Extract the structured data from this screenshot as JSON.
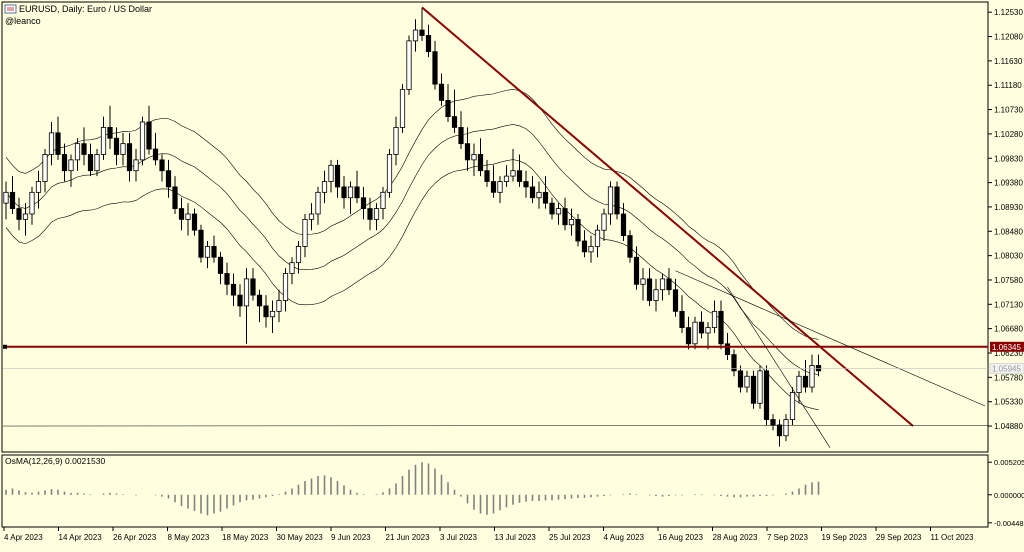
{
  "header": {
    "title": "EURUSD, Daily:  Euro / US Dollar",
    "watermark": "@leanco"
  },
  "colors": {
    "background": "#FFFFE0",
    "grid": "#000000",
    "bull_fill": "#FFFFFF",
    "bear_fill": "#000000",
    "trendline": "#8B0000",
    "hline": "#8B0000",
    "price_label_bg": "#8B0000",
    "bid_label_bg": "#F2F2F2",
    "envelope": "#000000"
  },
  "chart_data": [
    {
      "type": "candlestick",
      "symbol": "EURUSD",
      "timeframe": "Daily",
      "title": "EURUSD, Daily:  Euro / US Dollar",
      "ylim": [
        1.044,
        1.127
      ],
      "y_ticks": [
        "1.12530",
        "1.12080",
        "1.11630",
        "1.11180",
        "1.10730",
        "1.10280",
        "1.09830",
        "1.09380",
        "1.08930",
        "1.08480",
        "1.08030",
        "1.07580",
        "1.07130",
        "1.06680",
        "1.06230",
        "1.05780",
        "1.05330",
        "1.04880"
      ],
      "x_ticks": [
        "4 Apr 2023",
        "14 Apr 2023",
        "26 Apr 2023",
        "8 May 2023",
        "18 May 2023",
        "30 May 2023",
        "9 Jun 2023",
        "21 Jun 2023",
        "3 Jul 2023",
        "13 Jul 2023",
        "25 Jul 2023",
        "4 Aug 2023",
        "16 Aug 2023",
        "28 Aug 2023",
        "7 Sep 2023",
        "19 Sep 2023",
        "29 Sep 2023",
        "11 Oct 2023"
      ],
      "ohlc": [
        [
          1.09,
          1.094,
          1.087,
          1.092
        ],
        [
          1.092,
          1.095,
          1.088,
          1.089
        ],
        [
          1.089,
          1.091,
          1.085,
          1.087
        ],
        [
          1.087,
          1.09,
          1.084,
          1.088
        ],
        [
          1.088,
          1.093,
          1.086,
          1.092
        ],
        [
          1.092,
          1.096,
          1.089,
          1.094
        ],
        [
          1.094,
          1.1,
          1.092,
          1.099
        ],
        [
          1.099,
          1.105,
          1.097,
          1.103
        ],
        [
          1.103,
          1.106,
          1.098,
          1.099
        ],
        [
          1.099,
          1.101,
          1.094,
          1.096
        ],
        [
          1.096,
          1.099,
          1.093,
          1.098
        ],
        [
          1.098,
          1.102,
          1.096,
          1.101
        ],
        [
          1.101,
          1.104,
          1.097,
          1.099
        ],
        [
          1.099,
          1.101,
          1.095,
          1.096
        ],
        [
          1.096,
          1.1,
          1.095,
          1.099
        ],
        [
          1.099,
          1.106,
          1.098,
          1.104
        ],
        [
          1.104,
          1.108,
          1.1,
          1.102
        ],
        [
          1.102,
          1.104,
          1.097,
          1.099
        ],
        [
          1.099,
          1.103,
          1.097,
          1.101
        ],
        [
          1.101,
          1.103,
          1.094,
          1.096
        ],
        [
          1.096,
          1.1,
          1.094,
          1.098
        ],
        [
          1.098,
          1.106,
          1.097,
          1.105
        ],
        [
          1.105,
          1.108,
          1.099,
          1.1
        ],
        [
          1.1,
          1.103,
          1.097,
          1.098
        ],
        [
          1.098,
          1.099,
          1.094,
          1.096
        ],
        [
          1.096,
          1.098,
          1.091,
          1.093
        ],
        [
          1.093,
          1.095,
          1.088,
          1.089
        ],
        [
          1.089,
          1.091,
          1.085,
          1.087
        ],
        [
          1.087,
          1.09,
          1.084,
          1.088
        ],
        [
          1.088,
          1.089,
          1.084,
          1.085
        ],
        [
          1.085,
          1.086,
          1.079,
          1.08
        ],
        [
          1.08,
          1.083,
          1.078,
          1.082
        ],
        [
          1.082,
          1.084,
          1.079,
          1.08
        ],
        [
          1.08,
          1.081,
          1.075,
          1.077
        ],
        [
          1.077,
          1.079,
          1.073,
          1.075
        ],
        [
          1.075,
          1.077,
          1.071,
          1.073
        ],
        [
          1.073,
          1.075,
          1.069,
          1.071
        ],
        [
          1.071,
          1.078,
          1.064,
          1.076
        ],
        [
          1.076,
          1.078,
          1.072,
          1.073
        ],
        [
          1.073,
          1.074,
          1.068,
          1.071
        ],
        [
          1.071,
          1.073,
          1.067,
          1.069
        ],
        [
          1.069,
          1.072,
          1.066,
          1.07
        ],
        [
          1.07,
          1.074,
          1.068,
          1.072
        ],
        [
          1.072,
          1.078,
          1.07,
          1.077
        ],
        [
          1.077,
          1.08,
          1.075,
          1.079
        ],
        [
          1.079,
          1.083,
          1.077,
          1.082
        ],
        [
          1.082,
          1.088,
          1.08,
          1.087
        ],
        [
          1.087,
          1.09,
          1.085,
          1.088
        ],
        [
          1.088,
          1.093,
          1.086,
          1.092
        ],
        [
          1.092,
          1.096,
          1.09,
          1.094
        ],
        [
          1.094,
          1.098,
          1.092,
          1.097
        ],
        [
          1.097,
          1.098,
          1.091,
          1.093
        ],
        [
          1.093,
          1.095,
          1.089,
          1.091
        ],
        [
          1.091,
          1.094,
          1.088,
          1.093
        ],
        [
          1.093,
          1.096,
          1.09,
          1.091
        ],
        [
          1.091,
          1.093,
          1.087,
          1.089
        ],
        [
          1.089,
          1.091,
          1.085,
          1.087
        ],
        [
          1.087,
          1.09,
          1.085,
          1.089
        ],
        [
          1.089,
          1.093,
          1.087,
          1.092
        ],
        [
          1.092,
          1.1,
          1.091,
          1.099
        ],
        [
          1.099,
          1.106,
          1.097,
          1.104
        ],
        [
          1.104,
          1.112,
          1.103,
          1.111
        ],
        [
          1.111,
          1.121,
          1.11,
          1.12
        ],
        [
          1.12,
          1.124,
          1.118,
          1.122
        ],
        [
          1.122,
          1.126,
          1.12,
          1.121
        ],
        [
          1.121,
          1.123,
          1.117,
          1.118
        ],
        [
          1.118,
          1.12,
          1.111,
          1.112
        ],
        [
          1.112,
          1.114,
          1.108,
          1.109
        ],
        [
          1.109,
          1.112,
          1.105,
          1.106
        ],
        [
          1.106,
          1.111,
          1.103,
          1.104
        ],
        [
          1.104,
          1.107,
          1.1,
          1.101
        ],
        [
          1.101,
          1.104,
          1.096,
          1.098
        ],
        [
          1.098,
          1.101,
          1.095,
          1.099
        ],
        [
          1.099,
          1.102,
          1.095,
          1.096
        ],
        [
          1.096,
          1.098,
          1.093,
          1.094
        ],
        [
          1.094,
          1.097,
          1.091,
          1.092
        ],
        [
          1.092,
          1.095,
          1.09,
          1.094
        ],
        [
          1.094,
          1.097,
          1.093,
          1.095
        ],
        [
          1.095,
          1.1,
          1.094,
          1.096
        ],
        [
          1.096,
          1.099,
          1.093,
          1.094
        ],
        [
          1.094,
          1.096,
          1.091,
          1.093
        ],
        [
          1.093,
          1.095,
          1.09,
          1.091
        ],
        [
          1.091,
          1.094,
          1.089,
          1.092
        ],
        [
          1.092,
          1.095,
          1.089,
          1.09
        ],
        [
          1.09,
          1.091,
          1.087,
          1.088
        ],
        [
          1.088,
          1.09,
          1.086,
          1.089
        ],
        [
          1.089,
          1.091,
          1.085,
          1.086
        ],
        [
          1.086,
          1.089,
          1.084,
          1.087
        ],
        [
          1.087,
          1.088,
          1.082,
          1.083
        ],
        [
          1.083,
          1.085,
          1.08,
          1.081
        ],
        [
          1.081,
          1.084,
          1.079,
          1.082
        ],
        [
          1.082,
          1.086,
          1.08,
          1.085
        ],
        [
          1.085,
          1.089,
          1.083,
          1.088
        ],
        [
          1.088,
          1.094,
          1.086,
          1.093
        ],
        [
          1.093,
          1.094,
          1.087,
          1.088
        ],
        [
          1.088,
          1.09,
          1.083,
          1.084
        ],
        [
          1.084,
          1.085,
          1.079,
          1.08
        ],
        [
          1.08,
          1.082,
          1.074,
          1.075
        ],
        [
          1.075,
          1.078,
          1.072,
          1.076
        ],
        [
          1.076,
          1.078,
          1.071,
          1.072
        ],
        [
          1.072,
          1.076,
          1.07,
          1.074
        ],
        [
          1.074,
          1.077,
          1.072,
          1.076
        ],
        [
          1.076,
          1.078,
          1.073,
          1.074
        ],
        [
          1.074,
          1.076,
          1.069,
          1.07
        ],
        [
          1.07,
          1.073,
          1.066,
          1.067
        ],
        [
          1.067,
          1.069,
          1.063,
          1.064
        ],
        [
          1.064,
          1.069,
          1.063,
          1.068
        ],
        [
          1.068,
          1.07,
          1.065,
          1.066
        ],
        [
          1.066,
          1.068,
          1.063,
          1.067
        ],
        [
          1.067,
          1.072,
          1.066,
          1.07
        ],
        [
          1.07,
          1.072,
          1.063,
          1.064
        ],
        [
          1.064,
          1.066,
          1.061,
          1.062
        ],
        [
          1.062,
          1.063,
          1.058,
          1.059
        ],
        [
          1.059,
          1.06,
          1.055,
          1.056
        ],
        [
          1.056,
          1.059,
          1.055,
          1.058
        ],
        [
          1.058,
          1.059,
          1.052,
          1.053
        ],
        [
          1.053,
          1.06,
          1.052,
          1.059
        ],
        [
          1.059,
          1.06,
          1.049,
          1.05
        ],
        [
          1.05,
          1.051,
          1.048,
          1.049
        ],
        [
          1.049,
          1.05,
          1.045,
          1.047
        ],
        [
          1.047,
          1.051,
          1.046,
          1.05
        ],
        [
          1.05,
          1.056,
          1.049,
          1.055
        ],
        [
          1.055,
          1.059,
          1.053,
          1.058
        ],
        [
          1.058,
          1.061,
          1.055,
          1.056
        ],
        [
          1.056,
          1.062,
          1.055,
          1.06
        ],
        [
          1.06,
          1.062,
          1.058,
          1.059
        ]
      ],
      "current_price_label": "1.06345",
      "bid_label": "1.05945"
    },
    {
      "type": "histogram",
      "indicator": "OsMA(12,26,9)",
      "current_value_label": "0.0021530",
      "title": "OsMA(12,26,9) 0.0021530",
      "ylim": [
        -0.005,
        0.0062
      ],
      "y_ticks": [
        "0.0052053",
        "0.0000000",
        "-0.0044886"
      ],
      "values": [
        0.0008,
        0.001,
        0.0007,
        0.0004,
        0.0003,
        0.0005,
        0.0007,
        0.0009,
        0.0008,
        0.0005,
        0.0003,
        0.0003,
        0.0002,
        0.0001,
        0.0,
        0.0002,
        0.0003,
        0.0002,
        0.0001,
        0.0,
        -0.0001,
        0.0,
        0.0,
        -0.0001,
        -0.0003,
        -0.0006,
        -0.0012,
        -0.0018,
        -0.0022,
        -0.0026,
        -0.003,
        -0.0033,
        -0.003,
        -0.0027,
        -0.0022,
        -0.0017,
        -0.0012,
        -0.0009,
        -0.0008,
        -0.0006,
        -0.0004,
        -0.0002,
        0.0001,
        0.0005,
        0.001,
        0.0016,
        0.0022,
        0.0026,
        0.003,
        0.0031,
        0.0028,
        0.0022,
        0.0015,
        0.0008,
        0.0003,
        0.0001,
        0.0,
        0.0001,
        0.0004,
        0.001,
        0.0018,
        0.003,
        0.004,
        0.0048,
        0.0052,
        0.005,
        0.0042,
        0.0032,
        0.002,
        0.0008,
        -0.0003,
        -0.0014,
        -0.0024,
        -0.003,
        -0.0032,
        -0.003,
        -0.0025,
        -0.002,
        -0.0016,
        -0.0013,
        -0.0011,
        -0.001,
        -0.001,
        -0.0009,
        -0.0009,
        -0.0008,
        -0.0007,
        -0.0006,
        -0.0005,
        -0.0005,
        -0.0004,
        -0.0003,
        -0.0002,
        -0.0001,
        0.0,
        0.0001,
        0.0002,
        0.0001,
        0.0,
        -0.0001,
        -0.0002,
        -0.0003,
        -0.0002,
        -0.0001,
        -0.0001,
        0.0,
        0.0001,
        0.0001,
        0.0,
        -0.0001,
        -0.0002,
        -0.0003,
        -0.0004,
        -0.0004,
        -0.0003,
        -0.0003,
        -0.0002,
        -0.0002,
        -0.0001,
        0.0,
        0.0002,
        0.0005,
        0.001,
        0.0016,
        0.002,
        0.0021
      ]
    }
  ]
}
